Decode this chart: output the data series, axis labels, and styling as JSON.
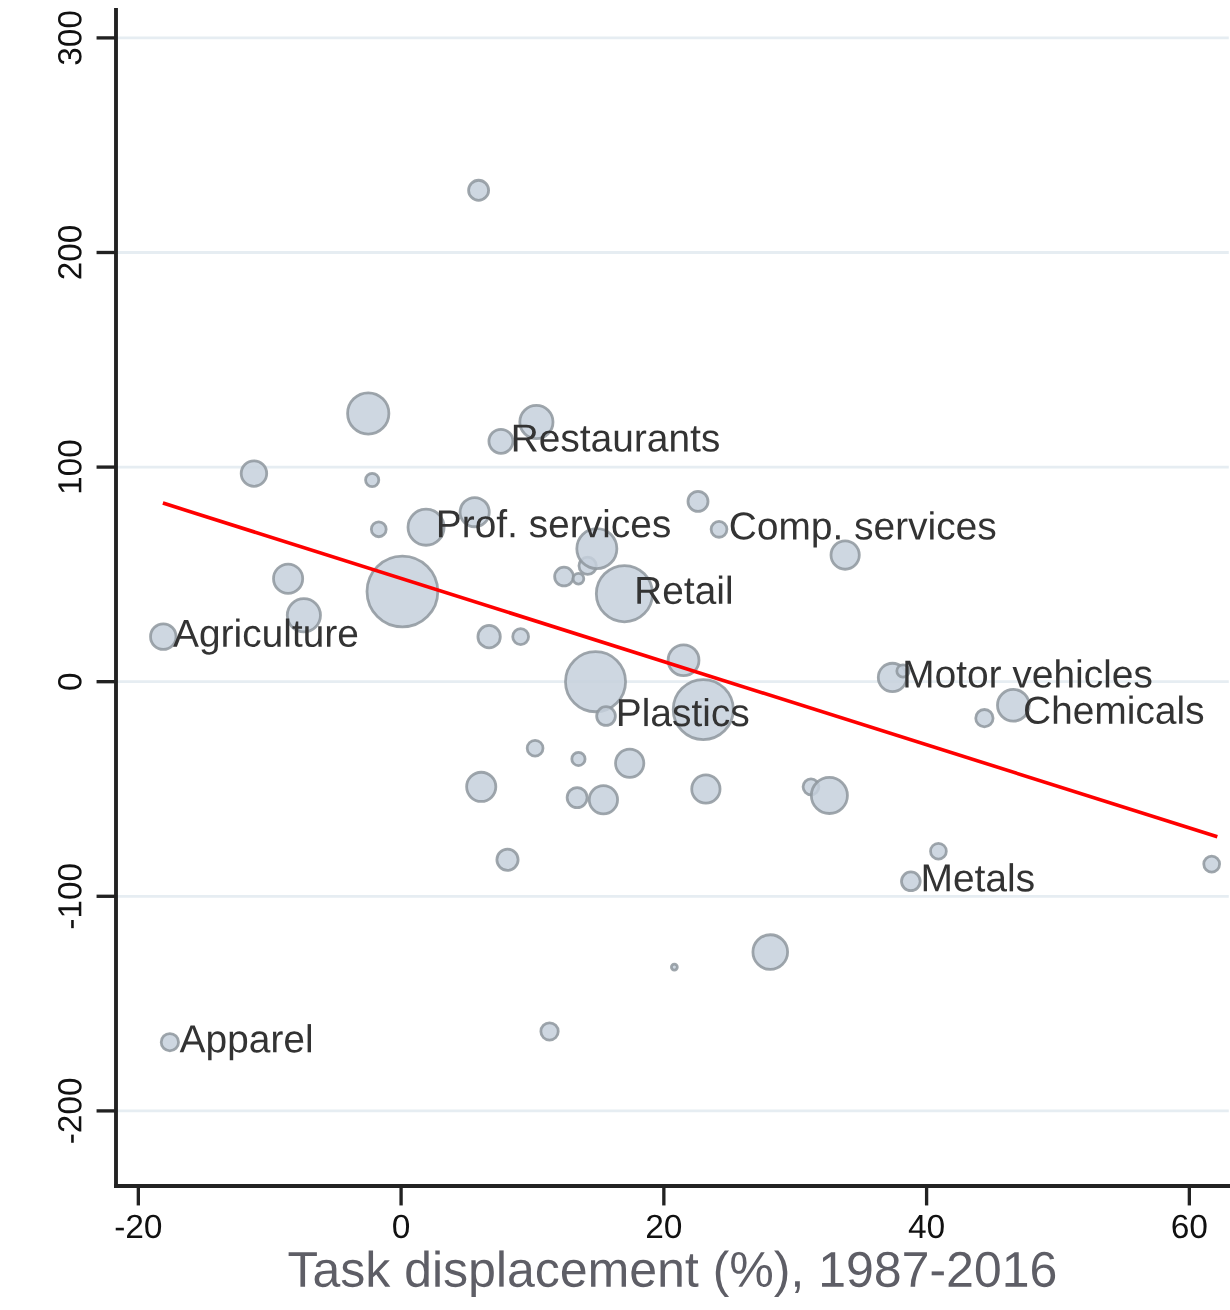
{
  "chart_data": {
    "type": "bubble",
    "xlabel": "Task displacement (%), 1987-2016",
    "xlim": [
      -21.7,
      63
    ],
    "ylim": [
      -235,
      313
    ],
    "xticks": [
      -20,
      0,
      20,
      40,
      60
    ],
    "yticks": [
      -200,
      -100,
      0,
      100,
      200,
      300
    ],
    "grid": "y",
    "series": [
      {
        "color": "#c5d0dc",
        "marker": "circle",
        "x": [
          5.9,
          -2.5,
          10.3,
          7.6,
          -11.2,
          -2.2,
          5.6,
          1.9,
          -1.7,
          -8.6,
          0.1,
          -7.4,
          -18.1,
          6.7,
          9.1,
          12.4,
          13.5,
          14.2,
          14.9,
          17.0,
          14.8,
          22.6,
          24.2,
          33.8,
          21.5,
          37.4,
          38.2,
          44.4,
          46.6,
          23.0,
          15.6,
          17.4,
          23.2,
          31.2,
          32.6,
          15.4,
          40.9,
          38.8,
          61.7,
          20.8,
          28.1,
          6.1,
          10.2,
          13.5,
          13.4,
          8.1,
          11.3,
          -17.6
        ],
        "values": [
          229,
          125,
          121,
          112,
          97,
          94,
          79,
          72,
          71,
          48,
          42,
          31,
          21,
          21,
          21,
          49,
          48,
          54,
          62,
          41,
          0,
          84,
          71,
          59,
          10,
          2,
          5,
          -17,
          -11,
          -13,
          -16,
          -38,
          -50,
          -49,
          -53,
          -55,
          -79,
          -93,
          -85,
          -133,
          -126,
          -49,
          -31,
          -36,
          -54,
          -83,
          -163,
          -168
        ],
        "sizes": [
          0.08,
          0.34,
          0.22,
          0.115,
          0.13,
          0.035,
          0.17,
          0.26,
          0.044,
          0.17,
          1,
          0.22,
          0.13,
          0.1,
          0.05,
          0.07,
          0.023,
          0.06,
          0.32,
          0.63,
          0.72,
          0.08,
          0.05,
          0.16,
          0.19,
          0.16,
          0.03,
          0.06,
          0.2,
          0.72,
          0.07,
          0.16,
          0.16,
          0.05,
          0.26,
          0.16,
          0.05,
          0.07,
          0.05,
          0.007,
          0.24,
          0.17,
          0.05,
          0.035,
          0.08,
          0.09,
          0.06,
          0.06
        ]
      },
      {
        "type": "line",
        "color": "#ff0000",
        "x": [
          -18,
          62
        ],
        "values": [
          83,
          -72
        ]
      }
    ],
    "annotations": [
      {
        "text": "Restaurants",
        "x": 7.6,
        "y": 112
      },
      {
        "text": "Prof. services",
        "x": 1.9,
        "y": 72
      },
      {
        "text": "Comp. services",
        "x": 24.2,
        "y": 71
      },
      {
        "text": "Retail",
        "x": 17.0,
        "y": 41
      },
      {
        "text": "Agriculture",
        "x": -18.1,
        "y": 21
      },
      {
        "text": "Motor vehicles",
        "x": 37.4,
        "y": 2
      },
      {
        "text": "Chemicals",
        "x": 46.6,
        "y": -11
      },
      {
        "text": "Plastics",
        "x": 15.6,
        "y": -16
      },
      {
        "text": "Metals",
        "x": 38.8,
        "y": -93
      },
      {
        "text": "Apparel",
        "x": -17.6,
        "y": -168
      }
    ]
  }
}
